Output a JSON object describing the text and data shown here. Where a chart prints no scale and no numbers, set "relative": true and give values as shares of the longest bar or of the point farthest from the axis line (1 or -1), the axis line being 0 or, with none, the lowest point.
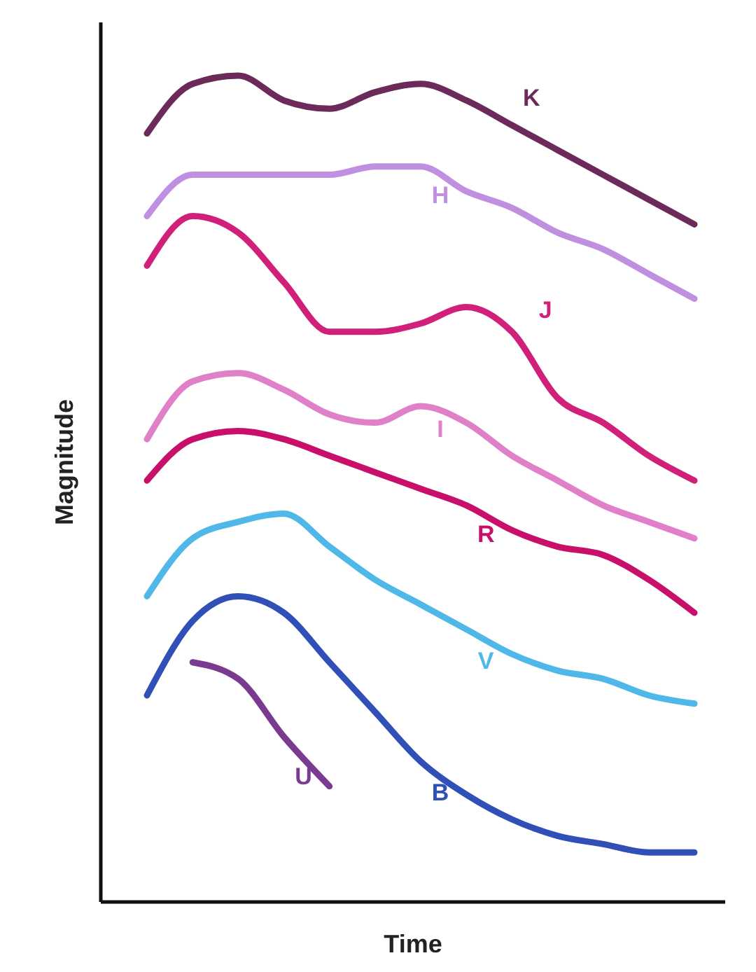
{
  "chart_data": {
    "type": "line",
    "relative": true,
    "xlabel": "Time",
    "ylabel": "Magnitude",
    "marker": "none",
    "line_style": "solid",
    "categories": [
      null,
      null,
      null,
      null,
      null,
      null,
      null,
      null,
      null,
      null,
      null,
      null,
      null
    ],
    "series": [
      {
        "name": "K",
        "color": "#6b2a5a",
        "values": [
          0.93,
          0.99,
          1.0,
          0.97,
          0.96,
          0.98,
          0.99,
          0.97,
          0.94,
          0.91,
          0.88,
          0.85,
          0.82
        ]
      },
      {
        "name": "H",
        "color": "#c090e0",
        "values": [
          0.83,
          0.88,
          0.88,
          0.88,
          0.88,
          0.89,
          0.89,
          0.86,
          0.84,
          0.81,
          0.79,
          0.76,
          0.73
        ]
      },
      {
        "name": "J",
        "color": "#d0207a",
        "values": [
          0.77,
          0.83,
          0.81,
          0.75,
          0.69,
          0.69,
          0.7,
          0.72,
          0.69,
          0.61,
          0.58,
          0.54,
          0.51
        ]
      },
      {
        "name": "I",
        "color": "#e080c8",
        "values": [
          0.56,
          0.63,
          0.64,
          0.62,
          0.59,
          0.58,
          0.6,
          0.58,
          0.54,
          0.51,
          0.48,
          0.46,
          0.44
        ]
      },
      {
        "name": "R",
        "color": "#c8106a",
        "values": [
          0.51,
          0.56,
          0.57,
          0.56,
          0.54,
          0.52,
          0.5,
          0.48,
          0.45,
          0.43,
          0.42,
          0.39,
          0.35
        ]
      },
      {
        "name": "V",
        "color": "#50b8e8",
        "values": [
          0.37,
          0.44,
          0.46,
          0.47,
          0.43,
          0.39,
          0.36,
          0.33,
          0.3,
          0.28,
          0.27,
          0.25,
          0.24
        ]
      },
      {
        "name": "B",
        "color": "#3050b8",
        "values": [
          0.25,
          0.34,
          0.37,
          0.35,
          0.29,
          0.23,
          0.17,
          0.13,
          0.1,
          0.08,
          0.07,
          0.06,
          0.06
        ]
      },
      {
        "name": "U",
        "color": "#7a3a90",
        "values": [
          null,
          0.29,
          0.27,
          0.2,
          0.14,
          null,
          null,
          null,
          null,
          null,
          null,
          null,
          null
        ]
      }
    ]
  }
}
